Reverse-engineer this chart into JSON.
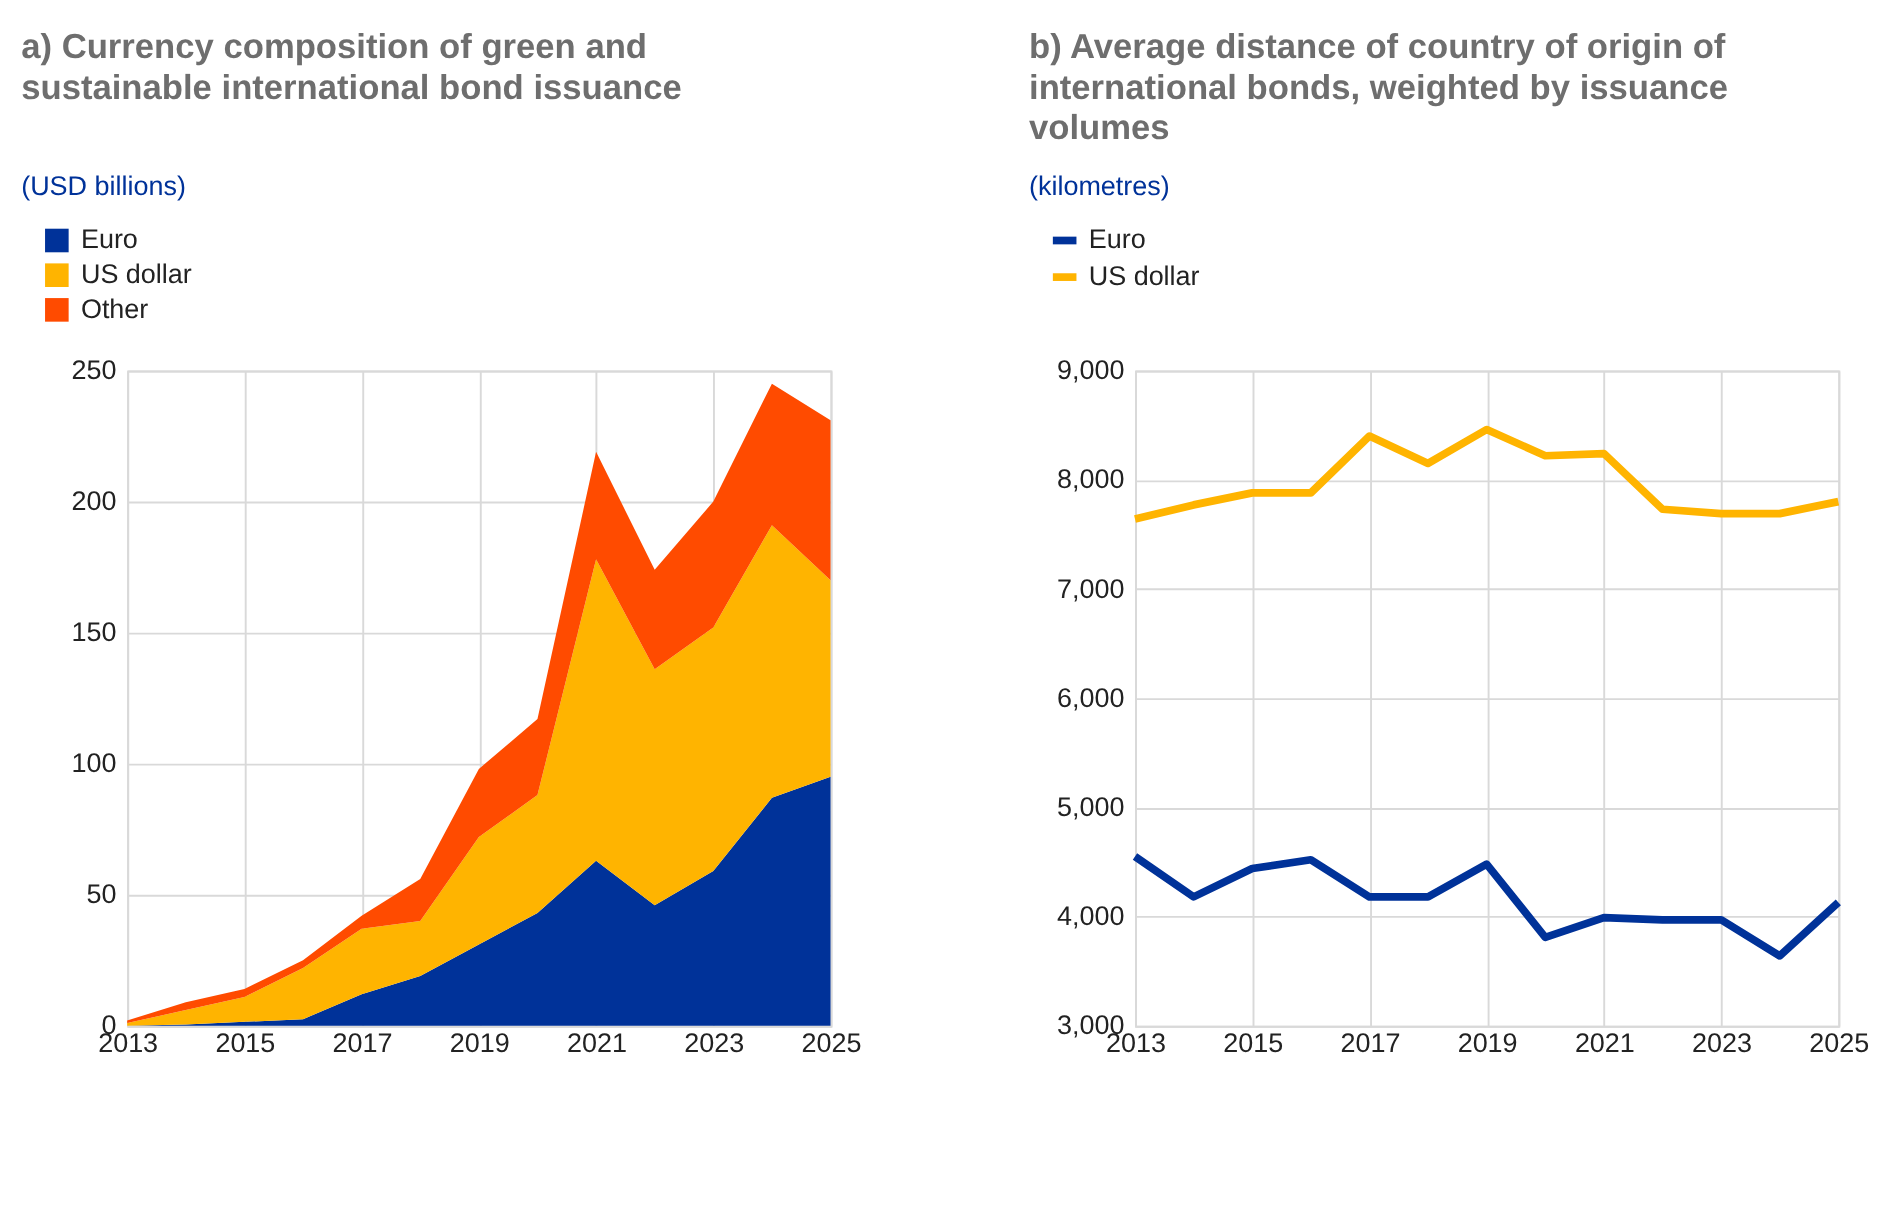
{
  "chart_data": [
    {
      "type": "area",
      "title": "a) Currency composition of green and sustainable international bond issuance",
      "ylabel": "(USD billions)",
      "stacked": true,
      "x": [
        2013,
        2014,
        2015,
        2016,
        2017,
        2018,
        2019,
        2020,
        2021,
        2022,
        2023,
        2024,
        2025
      ],
      "series": [
        {
          "name": "Euro",
          "color": "#003299",
          "values": [
            0,
            0.5,
            1.5,
            2.5,
            12,
            19,
            31,
            43,
            63,
            46,
            59,
            87,
            95
          ]
        },
        {
          "name": "US dollar",
          "color": "#ffb400",
          "values": [
            1,
            5.5,
            9.5,
            19.5,
            25,
            21,
            41,
            45,
            115,
            90,
            93,
            104,
            75
          ]
        },
        {
          "name": "Other",
          "color": "#ff4b00",
          "values": [
            1,
            3,
            3,
            3,
            5,
            16,
            26,
            29,
            41,
            38,
            48,
            54,
            61
          ]
        }
      ],
      "xlim": [
        2013,
        2025
      ],
      "xticks": [
        2013,
        2015,
        2017,
        2019,
        2021,
        2023,
        2025
      ],
      "ylim": [
        0,
        250
      ],
      "yticks": [
        0,
        50,
        100,
        150,
        200,
        250
      ],
      "grid": true,
      "legend": "top left"
    },
    {
      "type": "line",
      "title": "b) Average distance of country of origin of international bonds, weighted by issuance volumes",
      "ylabel": "(kilometres)",
      "x": [
        2013,
        2014,
        2015,
        2016,
        2017,
        2018,
        2019,
        2020,
        2021,
        2022,
        2023,
        2024,
        2025
      ],
      "series": [
        {
          "name": "Euro",
          "color": "#003299",
          "values": [
            4550,
            4180,
            4440,
            4520,
            4180,
            4180,
            4480,
            3810,
            3990,
            3970,
            3970,
            3640,
            4130
          ]
        },
        {
          "name": "US dollar",
          "color": "#ffb400",
          "values": [
            7640,
            7770,
            7880,
            7880,
            8400,
            8150,
            8460,
            8220,
            8240,
            7730,
            7690,
            7690,
            7800
          ]
        }
      ],
      "xlim": [
        2013,
        2025
      ],
      "xticks": [
        2013,
        2015,
        2017,
        2019,
        2021,
        2023,
        2025
      ],
      "ylim": [
        3000,
        9000
      ],
      "yticks": [
        {
          "value": 3000,
          "label": "3,000"
        },
        {
          "value": 4000,
          "label": "4,000"
        },
        {
          "value": 5000,
          "label": "5,000"
        },
        {
          "value": 6000,
          "label": "6,000"
        },
        {
          "value": 7000,
          "label": "7,000"
        },
        {
          "value": 8000,
          "label": "8,000"
        },
        {
          "value": 9000,
          "label": "9,000"
        }
      ],
      "grid": true,
      "legend": "top left",
      "marker": "none",
      "line_style": "solid"
    }
  ]
}
